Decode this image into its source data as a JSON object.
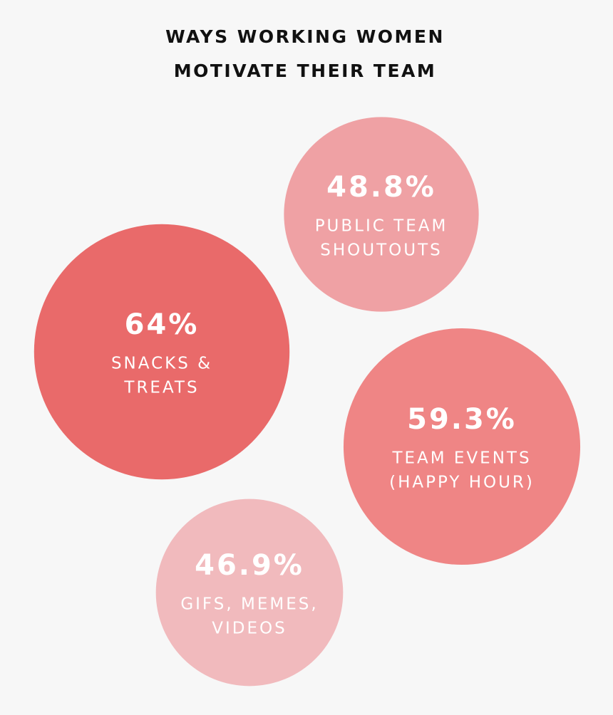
{
  "chart_data": {
    "type": "bubble",
    "title": [
      "WAYS WORKING WOMEN",
      "MOTIVATE THEIR TEAM"
    ],
    "categories": [
      [
        "SNACKS &",
        "TREATS"
      ],
      [
        "PUBLIC TEAM",
        "SHOUTOUTS"
      ],
      [
        "TEAM EVENTS",
        "(HAPPY HOUR)"
      ],
      [
        "GIFS, MEMES,",
        "VIDEOS"
      ]
    ],
    "values": [
      64,
      48.8,
      59.3,
      46.9
    ],
    "value_labels": [
      "64%",
      "48.8%",
      "59.3%",
      "46.9%"
    ],
    "colors": [
      "#e96a6a",
      "#efa1a4",
      "#ef8585",
      "#f1babd"
    ]
  }
}
